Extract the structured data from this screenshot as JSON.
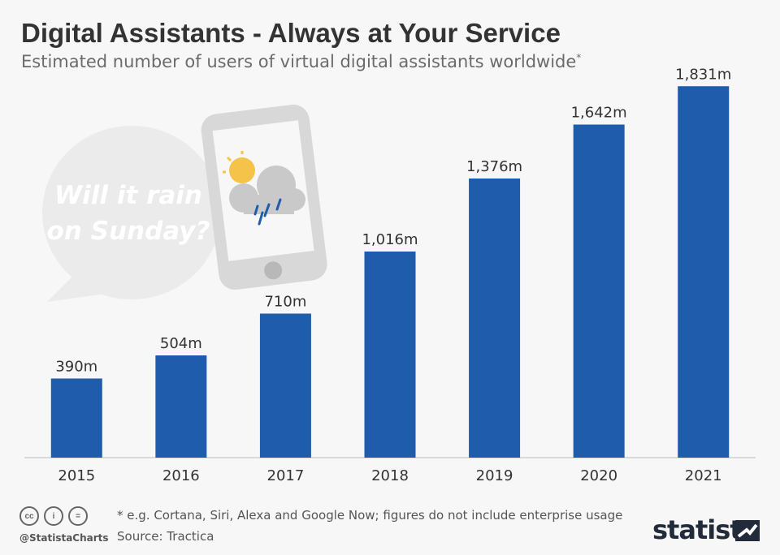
{
  "header": {
    "title": "Digital Assistants - Always at Your Service",
    "subtitle": "Estimated number of users of virtual digital assistants worldwide",
    "subtitle_mark": "*"
  },
  "illustration": {
    "bubble_line1": "Will it rain",
    "bubble_line2": "on Sunday?"
  },
  "chart_data": {
    "type": "bar",
    "title": "Digital Assistants - Always at Your Service",
    "subtitle": "Estimated number of users of virtual digital assistants worldwide*",
    "categories": [
      "2015",
      "2016",
      "2017",
      "2018",
      "2019",
      "2020",
      "2021"
    ],
    "values": [
      390,
      504,
      710,
      1016,
      1376,
      1642,
      1831
    ],
    "labels": [
      "390m",
      "504m",
      "710m",
      "1,016m",
      "1,376m",
      "1,642m",
      "1,831m"
    ],
    "unit": "millions of users",
    "xlabel": "",
    "ylabel": "",
    "ylim": [
      0,
      2000
    ],
    "grid": false,
    "color": "#1f5cab"
  },
  "footer": {
    "footnote": "* e.g. Cortana, Siri, Alexa and Google Now; figures do not include enterprise usage",
    "source": "Source: Tractica",
    "handle": "@StatistaCharts",
    "brand": "statista",
    "license_icons": [
      "cc-icon",
      "attribution-icon",
      "no-derivatives-icon"
    ]
  }
}
